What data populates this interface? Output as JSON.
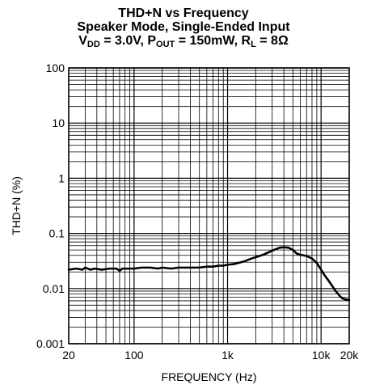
{
  "title": {
    "line1": "THD+N vs Frequency",
    "line2": "Speaker Mode, Single-Ended Input",
    "line3": {
      "v": "V",
      "v_sub": "DD",
      "v_eq": " = 3.0V, P",
      "p_sub": "OUT",
      "p_eq": " = 150mW, R",
      "r_sub": "L",
      "r_eq": " = 8Ω"
    }
  },
  "chart_data": {
    "type": "line",
    "xlabel": "FREQUENCY (Hz)",
    "ylabel": "THD+N (%)",
    "xscale": "log",
    "yscale": "log",
    "xlim": [
      20,
      20000
    ],
    "ylim": [
      0.001,
      100
    ],
    "grid": true,
    "xticks": [
      {
        "value": 20,
        "label": "20"
      },
      {
        "value": 100,
        "label": "100"
      },
      {
        "value": 1000,
        "label": "1k"
      },
      {
        "value": 10000,
        "label": "10k"
      },
      {
        "value": 20000,
        "label": "20k"
      }
    ],
    "yticks": [
      {
        "value": 100,
        "label": "100"
      },
      {
        "value": 10,
        "label": "10"
      },
      {
        "value": 1,
        "label": "1"
      },
      {
        "value": 0.1,
        "label": "0.1"
      },
      {
        "value": 0.01,
        "label": "0.01"
      },
      {
        "value": 0.001,
        "label": "0.001"
      }
    ],
    "series": [
      {
        "color": "#000000",
        "x": [
          20,
          24,
          28,
          30,
          34,
          38,
          45,
          55,
          65,
          70,
          75,
          85,
          100,
          120,
          150,
          180,
          200,
          250,
          300,
          400,
          500,
          600,
          700,
          800,
          900,
          1000,
          1200,
          1500,
          1800,
          2000,
          2400,
          2800,
          3200,
          3600,
          4000,
          4500,
          5000,
          5500,
          6000,
          7000,
          8000,
          9000,
          10000,
          11000,
          12000,
          13000,
          14000,
          15000,
          16000,
          17000,
          18000,
          20000
        ],
        "y": [
          0.022,
          0.023,
          0.022,
          0.024,
          0.022,
          0.023,
          0.022,
          0.023,
          0.023,
          0.021,
          0.023,
          0.023,
          0.023,
          0.024,
          0.024,
          0.023,
          0.024,
          0.023,
          0.024,
          0.024,
          0.024,
          0.025,
          0.025,
          0.026,
          0.026,
          0.027,
          0.028,
          0.031,
          0.035,
          0.037,
          0.041,
          0.046,
          0.051,
          0.055,
          0.056,
          0.055,
          0.05,
          0.043,
          0.041,
          0.039,
          0.035,
          0.029,
          0.022,
          0.017,
          0.014,
          0.0115,
          0.0095,
          0.0082,
          0.0072,
          0.0066,
          0.0064,
          0.0062
        ]
      }
    ]
  }
}
